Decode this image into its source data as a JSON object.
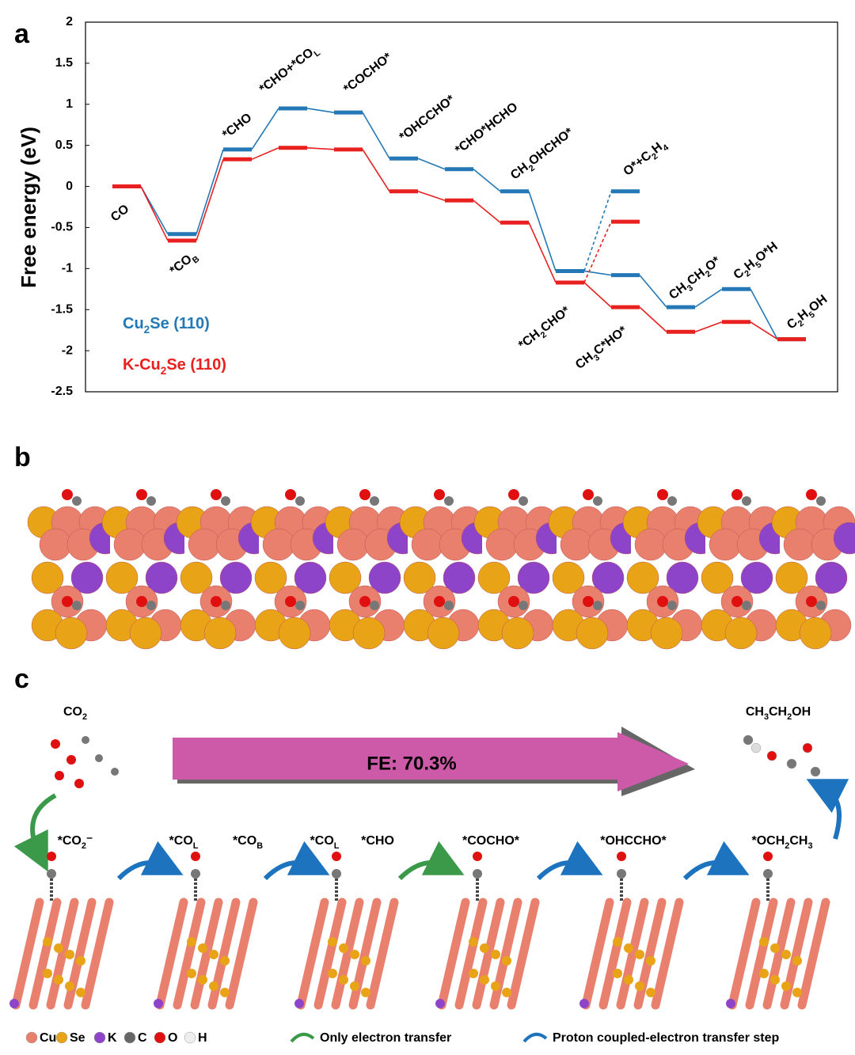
{
  "panels": {
    "a": "a",
    "b": "b",
    "c": "c"
  },
  "chart_data": {
    "type": "energy-diagram",
    "ylabel": "Free energy (eV)",
    "ylim": [
      -2.5,
      2
    ],
    "yticks": [
      -2.5,
      -2,
      -1.5,
      -1,
      -0.5,
      0,
      0.5,
      1,
      1.5,
      2
    ],
    "categories": [
      [
        "CO"
      ],
      [
        "*CO",
        "B"
      ],
      [
        "*CHO"
      ],
      [
        "*CHO+*CO",
        "L"
      ],
      [
        "*COCHO*"
      ],
      [
        "*OHCCHO*"
      ],
      [
        "*CHO*HCHO"
      ],
      [
        "CH",
        "2",
        "OHCHO*"
      ],
      [
        "*CH",
        "2",
        "CHO*"
      ],
      [
        "CH",
        "3",
        "C*HO*"
      ],
      [
        "CH",
        "3",
        "CH",
        "2",
        "O*"
      ],
      [
        "C",
        "2",
        "H",
        "5",
        "O*H"
      ],
      [
        "C",
        "2",
        "H",
        "5",
        "OH"
      ]
    ],
    "branch_category": [
      "O*+C",
      "2",
      "H",
      "4"
    ],
    "series": [
      {
        "name": [
          "Cu",
          "2",
          "Se (110)"
        ],
        "color": "#2378b5",
        "values": [
          0,
          -0.58,
          0.45,
          0.95,
          0.9,
          0.34,
          0.21,
          -0.06,
          -1.03,
          -1.08,
          -1.47,
          -1.25,
          -1.86
        ],
        "branch_value": -0.06
      },
      {
        "name": [
          "K-Cu",
          "2",
          "Se (110)"
        ],
        "color": "#e8201f",
        "values": [
          0,
          -0.66,
          0.33,
          0.47,
          0.45,
          -0.06,
          -0.17,
          -0.44,
          -1.17,
          -1.47,
          -1.77,
          -1.65,
          -1.86
        ],
        "branch_value": -0.43
      }
    ]
  },
  "panel_c": {
    "reactant": [
      "CO",
      "2"
    ],
    "product": [
      "CH",
      "3",
      "CH",
      "2",
      "OH"
    ],
    "arrow_label": "FE: 70.3%",
    "step_labels": [
      [
        "*CO",
        "2",
        "⁻"
      ],
      [
        "*CO",
        "L"
      ],
      [
        "*CO",
        "B"
      ],
      [
        "*CO",
        "L"
      ],
      [
        "*CHO"
      ],
      [
        "*COCHO*"
      ],
      [
        "*OHCCHO*"
      ],
      [
        "*OCH",
        "2",
        "CH",
        "3"
      ]
    ],
    "atoms": [
      "Cu",
      "Se",
      "K",
      "C",
      "O",
      "H"
    ],
    "arrows": [
      "Only electron transfer",
      "Proton coupled-electron transfer step"
    ]
  }
}
